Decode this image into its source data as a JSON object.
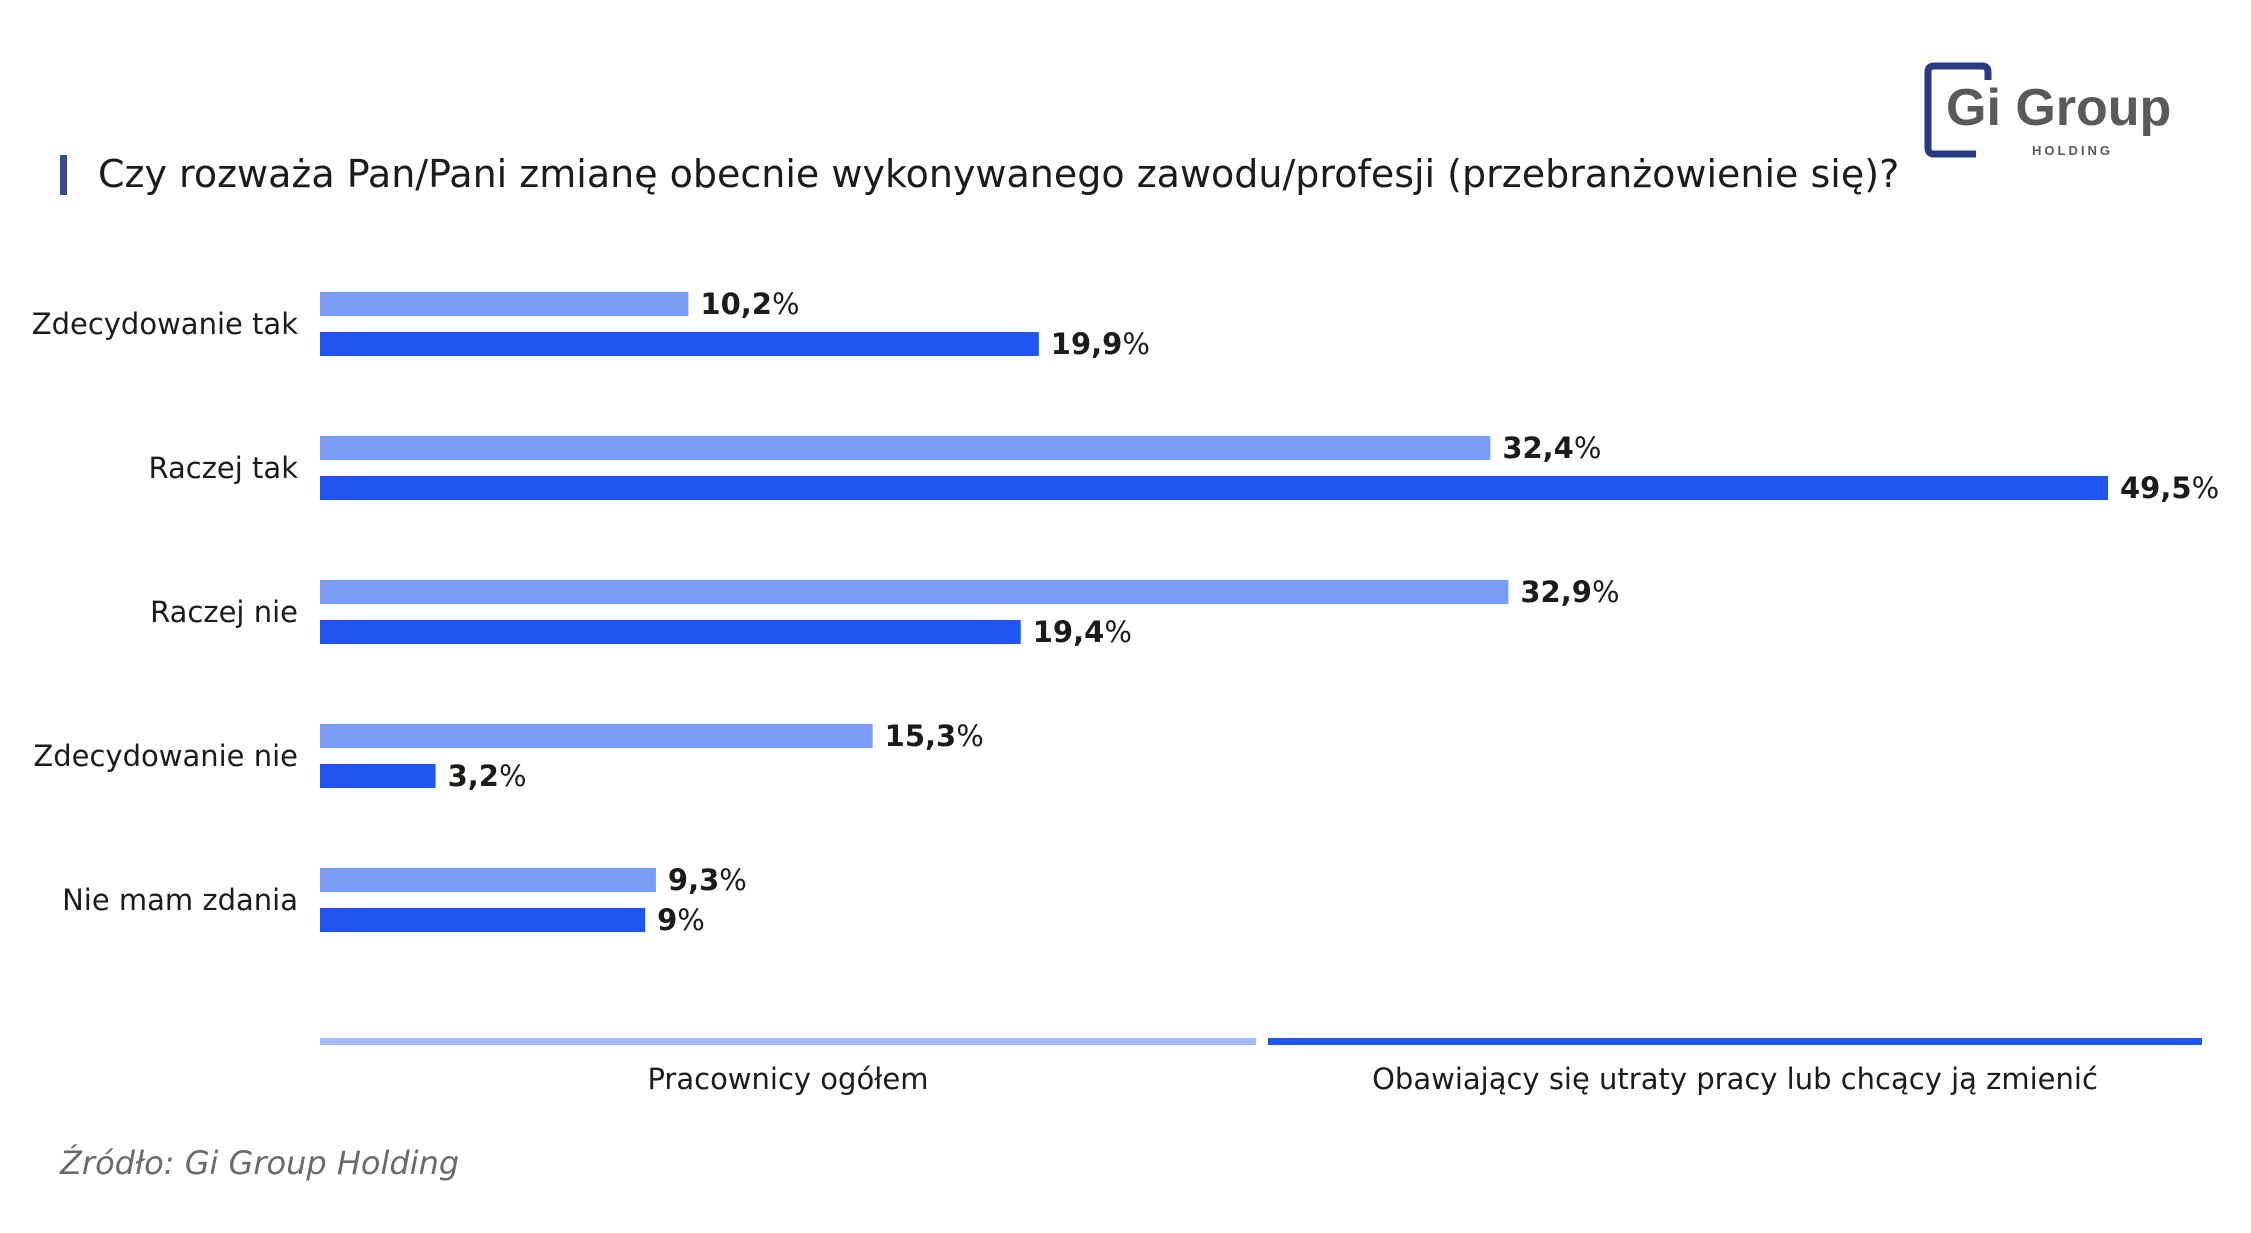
{
  "brand": {
    "name": "Gi Group",
    "sub": "HOLDING",
    "color": "#2b3a84"
  },
  "title": "Czy rozważa Pan/Pani zmianę obecnie wykonywanego zawodu/profesji (przebranżowienie się)?",
  "source": "Źródło: Gi Group Holding",
  "chart_data": {
    "type": "bar",
    "orientation": "horizontal",
    "title": "Czy rozważa Pan/Pani zmianę obecnie wykonywanego zawodu/profesji (przebranżowienie się)?",
    "categories": [
      "Zdecydowanie tak",
      "Raczej tak",
      "Raczej nie",
      "Zdecydowanie nie",
      "Nie mam zdania"
    ],
    "series": [
      {
        "name": "Pracownicy ogółem",
        "color": "#7b9cf7",
        "values": [
          10.2,
          32.4,
          32.9,
          15.3,
          9.3
        ],
        "labels": [
          "10,2",
          "32,4",
          "32,9",
          "15,3",
          "9,3"
        ]
      },
      {
        "name": "Obawiający się utraty pracy lub chcący ją zmienić",
        "color": "#1f55f0",
        "values": [
          19.9,
          49.5,
          19.4,
          3.2,
          9
        ],
        "labels": [
          "19,9",
          "49,5",
          "19,4",
          "3,2",
          "9"
        ]
      }
    ],
    "unit": "%",
    "xlim": [
      0,
      50
    ],
    "grid": false,
    "legend_position": "bottom"
  }
}
